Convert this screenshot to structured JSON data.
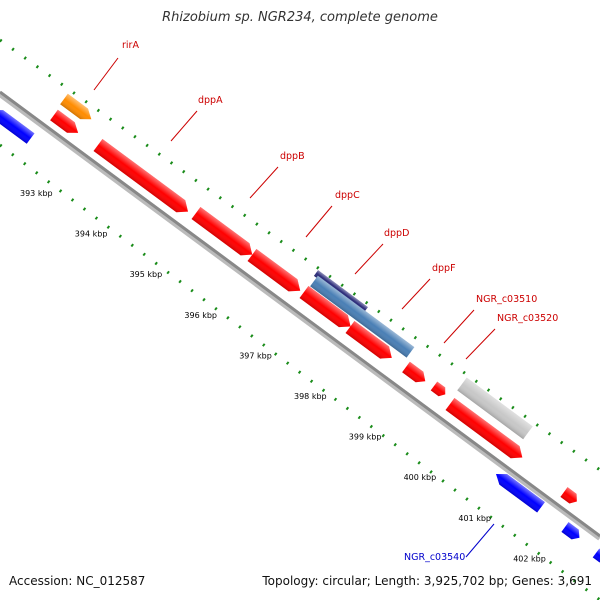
{
  "title": "Rhizobium sp. NGR234, complete genome",
  "accession": "Accession: NC_012587",
  "summary": "Topology: circular; Length: 3,925,702 bp; Genes: 3,691",
  "colors": {
    "forward_gene": "#ff0000",
    "reverse_gene": "#0000ff",
    "regulator": "#ff8c00",
    "highlight_light": "#4a7fb5",
    "highlight_dark": "#2c2c7a",
    "pseudo": "#c8c8c8",
    "forward_label": "#cc0000",
    "reverse_label": "#0000cc",
    "tick_text": "#000000"
  },
  "ticks": [
    "393 kbp",
    "394 kbp",
    "395 kbp",
    "396 kbp",
    "397 kbp",
    "398 kbp",
    "399 kbp",
    "400 kbp",
    "401 kbp",
    "402 kbp"
  ],
  "labels": [
    {
      "name": "rirA",
      "strand": "forward"
    },
    {
      "name": "dppA",
      "strand": "forward"
    },
    {
      "name": "dppB",
      "strand": "forward"
    },
    {
      "name": "dppC",
      "strand": "forward"
    },
    {
      "name": "dppD",
      "strand": "forward"
    },
    {
      "name": "dppF",
      "strand": "forward"
    },
    {
      "name": "NGR_c03510",
      "strand": "forward"
    },
    {
      "name": "NGR_c03520",
      "strand": "forward"
    },
    {
      "name": "NGR_c03540",
      "strand": "reverse"
    }
  ]
}
